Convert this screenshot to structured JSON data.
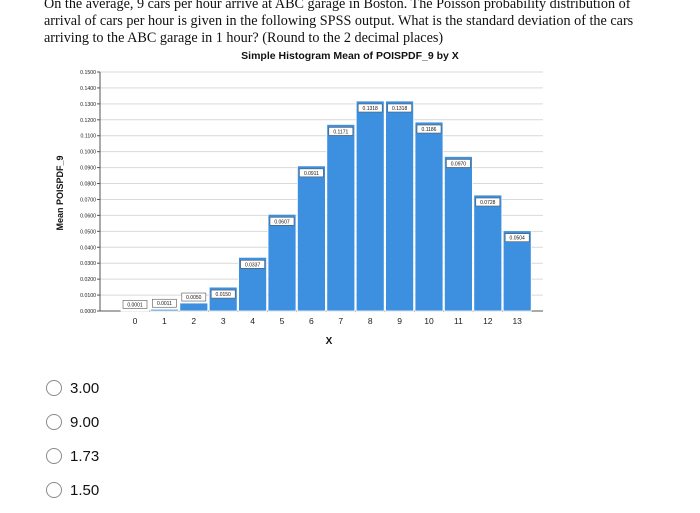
{
  "question": {
    "line1": "On the average, 9 cars per hour arrive at ABC garage in Boston. The Poisson probability distribution of",
    "line2": "arrival of cars per hour is given in the following SPSS output. What is the standard deviation of the cars",
    "line3": "arriving to the ABC garage in 1 hour? (Round to the 2 decimal places)"
  },
  "chart_data": {
    "type": "bar",
    "title": "Simple Histogram Mean of POISPDF_9 by X",
    "xlabel": "X",
    "ylabel": "Mean POISPDF_9",
    "categories": [
      "0",
      "1",
      "2",
      "3",
      "4",
      "5",
      "6",
      "7",
      "8",
      "9",
      "10",
      "11",
      "12",
      "13"
    ],
    "values": [
      0.0001,
      0.0011,
      0.005,
      0.015,
      0.0337,
      0.0607,
      0.0911,
      0.1171,
      0.1318,
      0.1318,
      0.1186,
      0.097,
      0.0728,
      0.0504
    ],
    "data_labels": [
      "0.0001",
      "0.0011",
      "0.0050",
      "0.0150",
      "0.0337",
      "0.0607",
      "0.0911",
      "0.1171",
      "0.1318",
      "0.1318",
      "0.1186",
      "0.0970",
      "0.0728",
      "0.0504"
    ],
    "yticks": [
      0.0,
      0.01,
      0.02,
      0.03,
      0.04,
      0.05,
      0.06,
      0.07,
      0.08,
      0.09,
      0.1,
      0.11,
      0.12,
      0.13,
      0.14,
      0.15
    ],
    "ytick_labels": [
      "0.0000",
      "0.0100",
      "0.0200",
      "0.0300",
      "0.0400",
      "0.0500",
      "0.0600",
      "0.0700",
      "0.0800",
      "0.0900",
      "0.1000",
      "0.1100",
      "0.1200",
      "0.1300",
      "0.1400",
      "0.1500"
    ],
    "ylim": [
      0,
      0.15
    ],
    "grid": true,
    "bar_color": "#3d8fe0"
  },
  "options": [
    {
      "label": "3.00"
    },
    {
      "label": "9.00"
    },
    {
      "label": "1.73"
    },
    {
      "label": "1.50"
    }
  ]
}
